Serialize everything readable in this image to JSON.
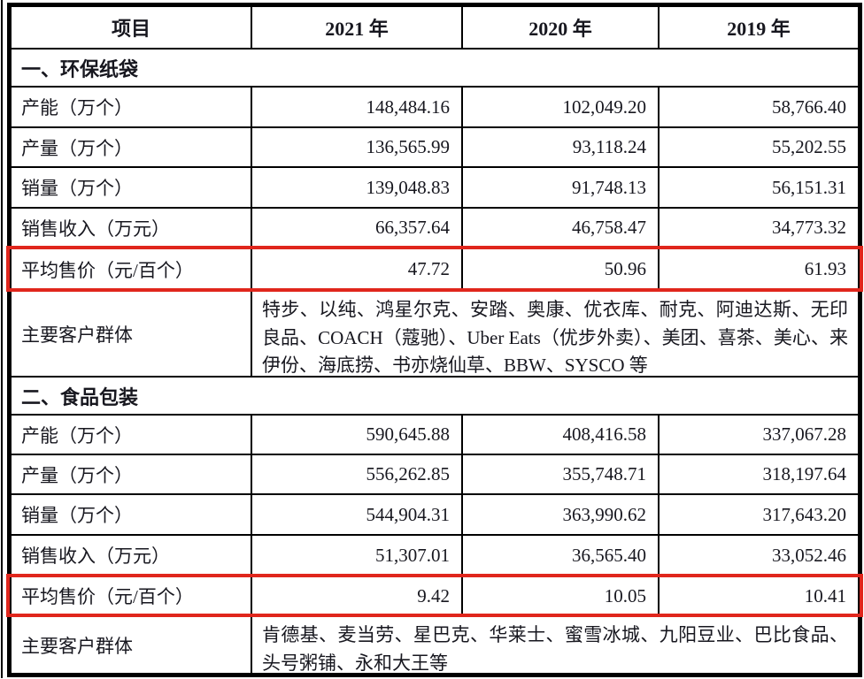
{
  "meta": {
    "highlight_border_color": "#e0261c",
    "table_border_color": "#000000",
    "text_color": "#17171f"
  },
  "table": {
    "columns": {
      "item": "项目",
      "y2021": "2021 年",
      "y2020": "2020 年",
      "y2019": "2019 年"
    },
    "rows": [
      {
        "type": "section",
        "label": "一、环保纸袋"
      },
      {
        "type": "data",
        "label": "产能（万个）",
        "v2021": "148,484.16",
        "v2020": "102,049.20",
        "v2019": "58,766.40"
      },
      {
        "type": "data",
        "label": "产量（万个）",
        "v2021": "136,565.99",
        "v2020": "93,118.24",
        "v2019": "55,202.55"
      },
      {
        "type": "data",
        "label": "销量（万个）",
        "v2021": "139,048.83",
        "v2020": "91,748.13",
        "v2019": "56,151.31"
      },
      {
        "type": "data",
        "label": "销售收入（万元）",
        "v2021": "66,357.64",
        "v2020": "46,758.47",
        "v2019": "34,773.32"
      },
      {
        "type": "data",
        "highlight": true,
        "label": "平均售价（元/百个）",
        "v2021": "47.72",
        "v2020": "50.96",
        "v2019": "61.93"
      },
      {
        "type": "customers",
        "label": "主要客户群体",
        "text": "特步、以纯、鸿星尔克、安踏、奥康、优衣库、耐克、阿迪达斯、无印良品、COACH（蔻驰）、Uber Eats（优步外卖）、美团、喜茶、美心、来伊份、海底捞、书亦烧仙草、BBW、SYSCO 等"
      },
      {
        "type": "section",
        "label": "二、食品包装"
      },
      {
        "type": "data",
        "label": "产能（万个）",
        "v2021": "590,645.88",
        "v2020": "408,416.58",
        "v2019": "337,067.28"
      },
      {
        "type": "data",
        "label": "产量（万个）",
        "v2021": "556,262.85",
        "v2020": "355,748.71",
        "v2019": "318,197.64"
      },
      {
        "type": "data",
        "label": "销量（万个）",
        "v2021": "544,904.31",
        "v2020": "363,990.62",
        "v2019": "317,643.20"
      },
      {
        "type": "data",
        "label": "销售收入（万元）",
        "v2021": "51,307.01",
        "v2020": "36,565.40",
        "v2019": "33,052.46"
      },
      {
        "type": "data",
        "highlight": true,
        "label": "平均售价（元/百个）",
        "v2021": "9.42",
        "v2020": "10.05",
        "v2019": "10.41"
      },
      {
        "type": "customers",
        "label": "主要客户群体",
        "text": "肯德基、麦当劳、星巴克、华莱士、蜜雪冰城、九阳豆业、巴比食品、头号粥铺、永和大王等"
      }
    ]
  }
}
